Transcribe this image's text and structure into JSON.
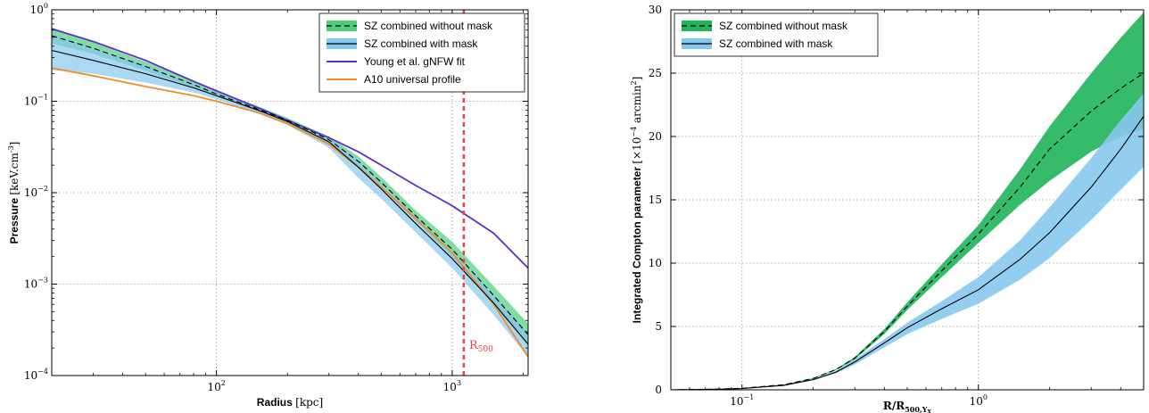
{
  "chart_data": [
    {
      "type": "line",
      "xlabel": "Radius",
      "xlabel_unit": "[kpc]",
      "ylabel": "Pressure",
      "ylabel_unit": "[keV.cm",
      "ylabel_unit_exp": "-3",
      "ylabel_unit_close": "]",
      "xscale": "log",
      "yscale": "log",
      "xlim": [
        20,
        2100
      ],
      "ylim": [
        0.0001,
        1
      ],
      "grid": true,
      "legend_position": "top-right",
      "x_ticks": [
        {
          "value": 100,
          "base": "10",
          "exp": "2"
        },
        {
          "value": 1000,
          "base": "10",
          "exp": "3"
        }
      ],
      "y_ticks": [
        {
          "value": 1,
          "base": "10",
          "exp": "0"
        },
        {
          "value": 0.1,
          "base": "10",
          "exp": "−1"
        },
        {
          "value": 0.01,
          "base": "10",
          "exp": "−2"
        },
        {
          "value": 0.001,
          "base": "10",
          "exp": "−3"
        },
        {
          "value": 0.0001,
          "base": "10",
          "exp": "−4"
        }
      ],
      "annotation": {
        "text": "R",
        "sub": "500",
        "x": 1120,
        "color": "#e8454a"
      },
      "series": [
        {
          "name": "SZ combined without mask",
          "style": "dashed",
          "color": "#000000",
          "band_color": "#4ccf78",
          "x": [
            20,
            30,
            50,
            80,
            100,
            150,
            200,
            300,
            400,
            500,
            700,
            1000,
            1500,
            2100
          ],
          "y": [
            0.52,
            0.38,
            0.24,
            0.152,
            0.12,
            0.082,
            0.062,
            0.038,
            0.022,
            0.013,
            0.0056,
            0.0024,
            0.00075,
            0.00028
          ],
          "y_lo": [
            0.43,
            0.33,
            0.215,
            0.14,
            0.112,
            0.077,
            0.058,
            0.034,
            0.0195,
            0.0114,
            0.0049,
            0.002,
            0.00058,
            0.00021
          ],
          "y_hi": [
            0.64,
            0.44,
            0.27,
            0.165,
            0.13,
            0.088,
            0.066,
            0.041,
            0.025,
            0.0148,
            0.0064,
            0.0029,
            0.00095,
            0.00037
          ]
        },
        {
          "name": "SZ combined with mask",
          "style": "solid",
          "color": "#000000",
          "band_color": "#87c8ee",
          "x": [
            20,
            30,
            50,
            80,
            100,
            150,
            200,
            300,
            400,
            500,
            700,
            1000,
            1500,
            2100
          ],
          "y": [
            0.36,
            0.28,
            0.2,
            0.14,
            0.115,
            0.08,
            0.06,
            0.036,
            0.019,
            0.011,
            0.0046,
            0.0019,
            0.00062,
            0.00022
          ],
          "y_lo": [
            0.22,
            0.2,
            0.16,
            0.125,
            0.105,
            0.074,
            0.055,
            0.031,
            0.0145,
            0.0086,
            0.0037,
            0.0015,
            0.00046,
            0.00016
          ],
          "y_hi": [
            0.55,
            0.38,
            0.25,
            0.155,
            0.125,
            0.086,
            0.064,
            0.04,
            0.023,
            0.013,
            0.0055,
            0.0023,
            0.00078,
            0.00029
          ]
        },
        {
          "name": "Young et al. gNFW fit",
          "style": "solid",
          "color": "#5b2fc9",
          "x": [
            20,
            30,
            50,
            80,
            100,
            150,
            200,
            300,
            400,
            500,
            700,
            1000,
            1500,
            2100
          ],
          "y": [
            0.62,
            0.45,
            0.28,
            0.165,
            0.13,
            0.085,
            0.062,
            0.04,
            0.028,
            0.02,
            0.012,
            0.0072,
            0.0036,
            0.0015
          ]
        },
        {
          "name": "A10 universal profile",
          "style": "solid",
          "color": "#f28c28",
          "x": [
            20,
            30,
            50,
            80,
            100,
            150,
            200,
            300,
            400,
            500,
            700,
            1000,
            1500,
            2100
          ],
          "y": [
            0.23,
            0.19,
            0.145,
            0.115,
            0.1,
            0.075,
            0.057,
            0.034,
            0.019,
            0.0115,
            0.0052,
            0.0022,
            0.0006,
            0.00016
          ]
        }
      ]
    },
    {
      "type": "line",
      "xlabel": "R/R",
      "xlabel_sub": "500,Y",
      "xlabel_subsub": "X",
      "ylabel": "Integrated Compton parameter",
      "ylabel_unit": "[×10",
      "ylabel_unit_exp": "−4",
      "ylabel_unit_mid": " arcmin",
      "ylabel_unit_exp2": "2",
      "ylabel_unit_close": "]",
      "xscale": "log",
      "yscale": "linear",
      "xlim": [
        0.05,
        5
      ],
      "ylim": [
        0,
        30
      ],
      "grid": true,
      "legend_position": "top-left",
      "x_ticks": [
        {
          "value": 0.1,
          "base": "10",
          "exp": "−1"
        },
        {
          "value": 1,
          "base": "10",
          "exp": "0"
        }
      ],
      "y_ticks": [
        0,
        5,
        10,
        15,
        20,
        25,
        30
      ],
      "series": [
        {
          "name": "SZ combined without mask",
          "style": "dashed",
          "color": "#000000",
          "band_color": "#1fb45a",
          "x": [
            0.05,
            0.08,
            0.1,
            0.15,
            0.2,
            0.25,
            0.3,
            0.4,
            0.5,
            0.7,
            1.0,
            1.5,
            2.0,
            3.0,
            4.0,
            5.0
          ],
          "y": [
            0.0,
            0.06,
            0.12,
            0.4,
            0.9,
            1.6,
            2.5,
            4.6,
            6.6,
            9.4,
            12.3,
            16.0,
            19.0,
            22.0,
            23.8,
            25.0
          ],
          "y_lo": [
            0.0,
            0.06,
            0.12,
            0.38,
            0.87,
            1.55,
            2.4,
            4.4,
            6.3,
            8.9,
            11.6,
            14.6,
            16.5,
            18.8,
            20.0,
            20.6
          ],
          "y_hi": [
            0.0,
            0.06,
            0.13,
            0.42,
            0.93,
            1.65,
            2.6,
            4.8,
            6.9,
            9.9,
            13.0,
            17.4,
            20.8,
            25.0,
            27.8,
            29.8
          ]
        },
        {
          "name": "SZ combined with mask",
          "style": "solid",
          "color": "#000000",
          "band_color": "#87c8ee",
          "x": [
            0.05,
            0.08,
            0.1,
            0.15,
            0.2,
            0.25,
            0.3,
            0.4,
            0.5,
            0.7,
            1.0,
            1.5,
            2.0,
            3.0,
            4.0,
            5.0
          ],
          "y": [
            0.0,
            0.05,
            0.1,
            0.35,
            0.8,
            1.4,
            2.2,
            3.7,
            4.9,
            6.4,
            7.9,
            10.3,
            12.4,
            16.0,
            19.0,
            21.6
          ],
          "y_lo": [
            0.0,
            0.05,
            0.1,
            0.33,
            0.75,
            1.3,
            2.0,
            3.35,
            4.4,
            5.6,
            6.8,
            8.7,
            10.4,
            13.4,
            15.8,
            17.6
          ],
          "y_hi": [
            0.0,
            0.05,
            0.11,
            0.37,
            0.85,
            1.5,
            2.4,
            4.0,
            5.3,
            7.0,
            8.9,
            11.8,
            14.4,
            18.3,
            21.3,
            23.4
          ]
        }
      ]
    }
  ]
}
